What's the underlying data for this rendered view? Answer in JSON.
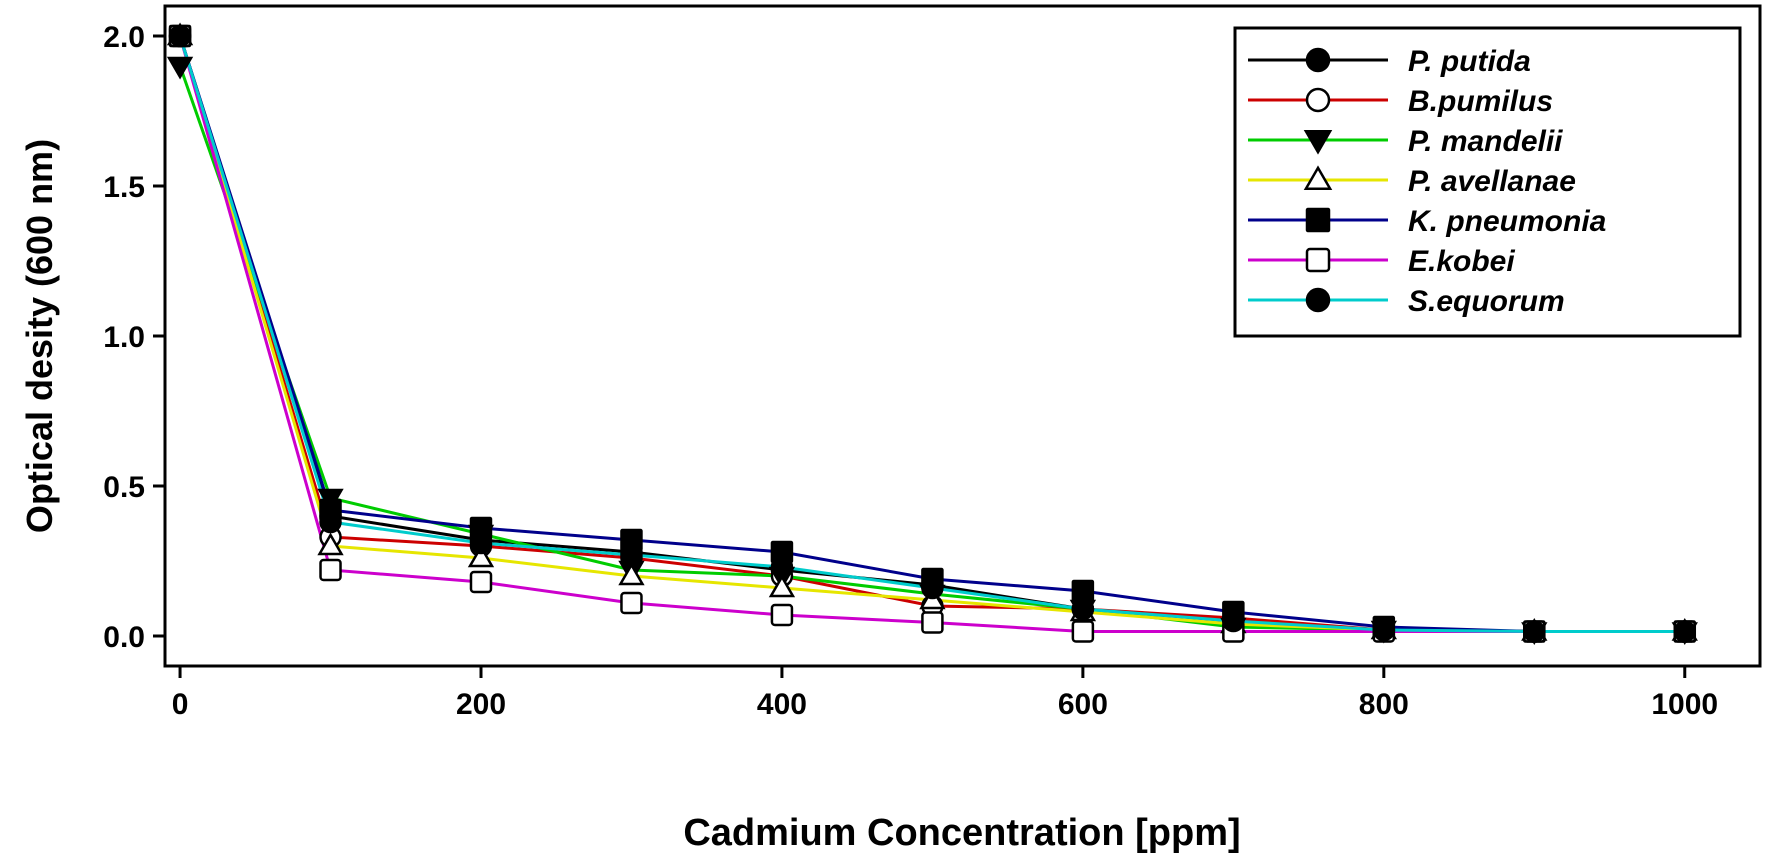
{
  "chart_data": {
    "type": "line",
    "title": "",
    "xlabel": "Cadmium Concentration [ppm]",
    "ylabel": "Optical desity (600 nm)",
    "xlim": [
      -10,
      1050
    ],
    "ylim": [
      -0.1,
      2.1
    ],
    "x_ticks": [
      0,
      200,
      400,
      600,
      800,
      1000
    ],
    "x_tick_labels": [
      "0",
      "200",
      "400",
      "600",
      "800",
      "1000"
    ],
    "y_ticks": [
      0.0,
      0.5,
      1.0,
      1.5,
      2.0
    ],
    "y_tick_labels": [
      "0.0",
      "0.5",
      "1.0",
      "1.5",
      "2.0"
    ],
    "grid": false,
    "legend_position": "top-right",
    "x": [
      0,
      100,
      200,
      300,
      400,
      500,
      600,
      700,
      800,
      900,
      1000
    ],
    "series": [
      {
        "name": "P. putida",
        "color": "#000000",
        "marker": "circle",
        "fill": "filled",
        "values": [
          2.0,
          0.4,
          0.32,
          0.28,
          0.22,
          0.17,
          0.09,
          0.05,
          0.02,
          0.015,
          0.015
        ]
      },
      {
        "name": "B.pumilus",
        "color": "#cc0000",
        "marker": "circle",
        "fill": "open",
        "values": [
          2.0,
          0.33,
          0.3,
          0.26,
          0.2,
          0.1,
          0.09,
          0.06,
          0.02,
          0.015,
          0.015
        ]
      },
      {
        "name": "P. mandelii",
        "color": "#00cc00",
        "marker": "triangle-down",
        "fill": "filled",
        "values": [
          1.9,
          0.46,
          0.34,
          0.22,
          0.2,
          0.14,
          0.09,
          0.03,
          0.02,
          0.015,
          0.015
        ]
      },
      {
        "name": "P. avellanae",
        "color": "#e6e600",
        "marker": "triangle-up",
        "fill": "open",
        "values": [
          2.0,
          0.3,
          0.26,
          0.2,
          0.16,
          0.12,
          0.08,
          0.04,
          0.02,
          0.015,
          0.015
        ]
      },
      {
        "name": "K. pneumonia",
        "color": "#00008b",
        "marker": "square",
        "fill": "filled",
        "values": [
          2.0,
          0.42,
          0.36,
          0.32,
          0.28,
          0.19,
          0.15,
          0.08,
          0.03,
          0.015,
          0.015
        ]
      },
      {
        "name": "E.kobei",
        "color": "#cc00cc",
        "marker": "square",
        "fill": "open",
        "values": [
          2.0,
          0.22,
          0.18,
          0.11,
          0.07,
          0.045,
          0.015,
          0.015,
          0.015,
          0.015,
          0.015
        ]
      },
      {
        "name": "S.equorum",
        "color": "#00cccc",
        "marker": "circle",
        "fill": "filled",
        "values": [
          2.0,
          0.38,
          0.31,
          0.27,
          0.23,
          0.16,
          0.09,
          0.05,
          0.02,
          0.015,
          0.015
        ]
      }
    ]
  }
}
